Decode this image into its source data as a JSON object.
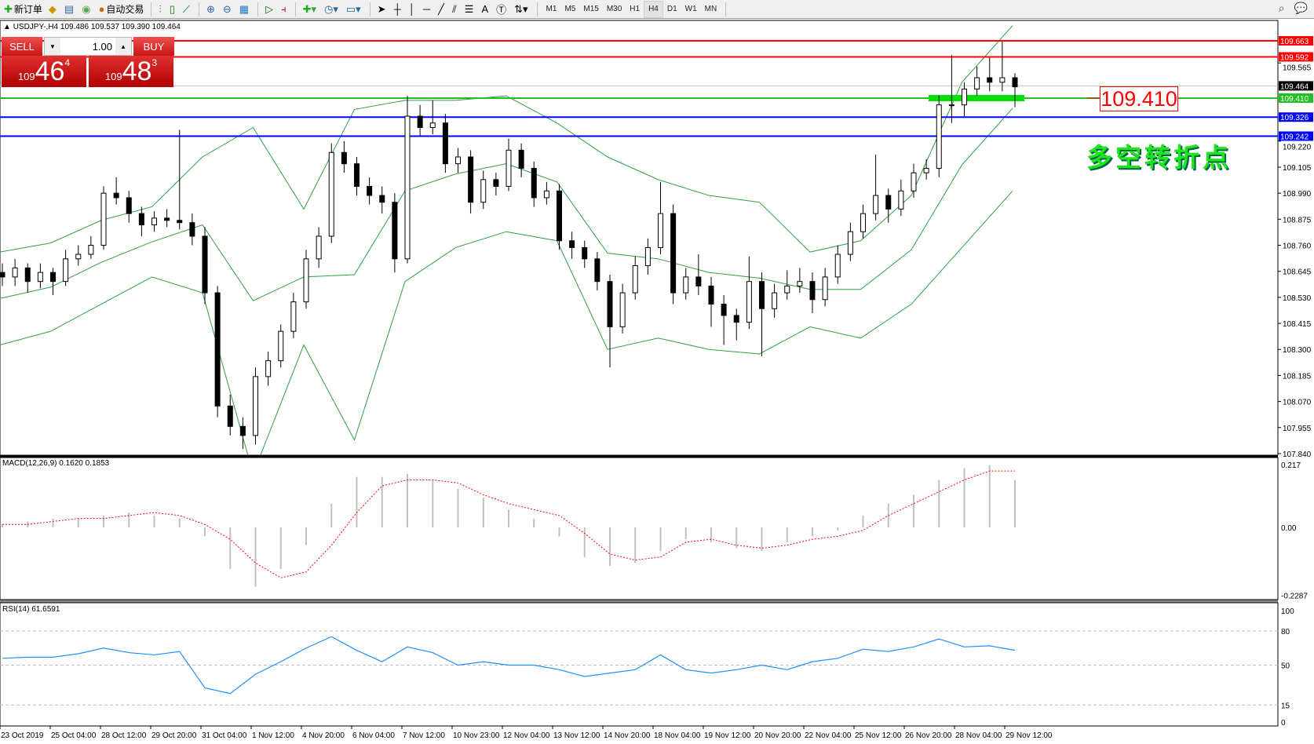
{
  "toolbar": {
    "new_order": "新订单",
    "auto_trading": "自动交易",
    "timeframes": [
      "M1",
      "M5",
      "M15",
      "M30",
      "H1",
      "H4",
      "D1",
      "W1",
      "MN"
    ],
    "active_timeframe": "H4",
    "icons": [
      "new-order-icon",
      "market-watch-icon",
      "navigator-icon",
      "signals-icon",
      "auto-trading-icon",
      "bar-chart-icon",
      "candlestick-icon",
      "line-chart-icon",
      "zoom-in-icon",
      "zoom-out-icon",
      "tile-windows-icon",
      "auto-scroll-icon",
      "chart-shift-icon",
      "indicators-icon",
      "periods-icon",
      "templates-icon",
      "cursor-icon",
      "crosshair-icon",
      "vertical-line-icon",
      "horizontal-line-icon",
      "trendline-icon",
      "equidistant-channel-icon",
      "fibonacci-icon",
      "text-icon",
      "text-label-icon",
      "arrows-icon",
      "search-icon",
      "chat-icon"
    ]
  },
  "symbol": {
    "info": "USDJPY-,H4  109.486 109.537 109.390 109.464"
  },
  "trade": {
    "sell_label": "SELL",
    "buy_label": "BUY",
    "lot": "1.00",
    "sell_small": "109",
    "sell_big": "46",
    "sell_pip": "4",
    "buy_small": "109",
    "buy_big": "48",
    "buy_pip": "3"
  },
  "annotation": {
    "level": "109.410",
    "text": "多空转折点"
  },
  "colors": {
    "up_down_candle": "#000000",
    "bands": "#2ea043",
    "resistance": "#ff0000",
    "support": "#0000ff",
    "pivot": "#00e000",
    "bid": "#c0c0c0",
    "macd_hist": "#c0c0c0",
    "macd_signal": "#ff0000",
    "rsi": "#1e90ff"
  },
  "chart_data": [
    {
      "type": "candlestick",
      "title": "USDJPY-,H4",
      "price_axis": [
        "109.565",
        "109.220",
        "109.105",
        "108.990",
        "108.875",
        "108.760",
        "108.645",
        "108.530",
        "108.415",
        "108.300",
        "108.185",
        "108.070",
        "107.955",
        "107.840"
      ],
      "ylim": [
        107.84,
        109.68
      ],
      "hlines": [
        {
          "value": 109.663,
          "label": "109.663",
          "color": "#ff0000"
        },
        {
          "value": 109.592,
          "label": "109.592",
          "color": "#ff0000"
        },
        {
          "value": 109.464,
          "label": "109.464",
          "color": "#000000",
          "line": "#c0c0c0"
        },
        {
          "value": 109.41,
          "label": "109.410",
          "color": "#22c022"
        },
        {
          "value": 109.326,
          "label": "109.326",
          "color": "#0000ff"
        },
        {
          "value": 109.242,
          "label": "109.242",
          "color": "#0000ff"
        }
      ],
      "time_axis": [
        "23 Oct 2019",
        "25 Oct 04:00",
        "28 Oct 12:00",
        "29 Oct 20:00",
        "31 Oct 04:00",
        "1 Nov 12:00",
        "4 Nov 20:00",
        "6 Nov 04:00",
        "7 Nov 12:00",
        "10 Nov 23:00",
        "12 Nov 04:00",
        "13 Nov 12:00",
        "14 Nov 20:00",
        "18 Nov 04:00",
        "19 Nov 12:00",
        "20 Nov 20:00",
        "22 Nov 04:00",
        "25 Nov 12:00",
        "26 Nov 20:00",
        "28 Nov 04:00",
        "29 Nov 12:00"
      ],
      "candles_ohlc": [
        [
          108.64,
          108.68,
          108.58,
          108.62
        ],
        [
          108.62,
          108.7,
          108.58,
          108.66
        ],
        [
          108.66,
          108.68,
          108.55,
          108.6
        ],
        [
          108.6,
          108.68,
          108.57,
          108.64
        ],
        [
          108.64,
          108.66,
          108.54,
          108.6
        ],
        [
          108.6,
          108.74,
          108.58,
          108.7
        ],
        [
          108.7,
          108.76,
          108.67,
          108.72
        ],
        [
          108.72,
          108.8,
          108.7,
          108.76
        ],
        [
          108.76,
          109.02,
          108.74,
          108.99
        ],
        [
          108.99,
          109.06,
          108.94,
          108.97
        ],
        [
          108.97,
          109.0,
          108.86,
          108.9
        ],
        [
          108.9,
          108.93,
          108.8,
          108.85
        ],
        [
          108.85,
          108.91,
          108.82,
          108.88
        ],
        [
          108.88,
          108.92,
          108.84,
          108.87
        ],
        [
          108.87,
          109.27,
          108.83,
          108.86
        ],
        [
          108.86,
          108.9,
          108.76,
          108.8
        ],
        [
          108.8,
          108.84,
          108.5,
          108.55
        ],
        [
          108.55,
          108.58,
          108.0,
          108.05
        ],
        [
          108.05,
          108.1,
          107.92,
          107.96
        ],
        [
          107.96,
          108.0,
          107.86,
          107.92
        ],
        [
          107.92,
          108.22,
          107.88,
          108.18
        ],
        [
          108.18,
          108.29,
          108.14,
          108.25
        ],
        [
          108.25,
          108.41,
          108.22,
          108.38
        ],
        [
          108.38,
          108.55,
          108.35,
          108.51
        ],
        [
          108.51,
          108.74,
          108.48,
          108.7
        ],
        [
          108.7,
          108.84,
          108.66,
          108.8
        ],
        [
          108.8,
          109.21,
          108.77,
          109.17
        ],
        [
          109.17,
          109.22,
          109.08,
          109.12
        ],
        [
          109.12,
          109.15,
          108.98,
          109.02
        ],
        [
          109.02,
          109.06,
          108.94,
          108.98
        ],
        [
          108.98,
          109.02,
          108.9,
          108.95
        ],
        [
          108.95,
          108.99,
          108.64,
          108.7
        ],
        [
          108.7,
          109.42,
          108.68,
          109.33
        ],
        [
          109.33,
          109.38,
          109.24,
          109.28
        ],
        [
          109.28,
          109.4,
          109.25,
          109.3
        ],
        [
          109.3,
          109.34,
          109.08,
          109.12
        ],
        [
          109.12,
          109.19,
          109.08,
          109.15
        ],
        [
          109.15,
          109.18,
          108.9,
          108.95
        ],
        [
          108.95,
          109.09,
          108.92,
          109.05
        ],
        [
          109.05,
          109.08,
          108.98,
          109.02
        ],
        [
          109.02,
          109.23,
          109.0,
          109.18
        ],
        [
          109.18,
          109.21,
          109.06,
          109.1
        ],
        [
          109.1,
          109.13,
          108.93,
          108.97
        ],
        [
          108.97,
          109.04,
          108.94,
          109.0
        ],
        [
          109.0,
          109.03,
          108.74,
          108.78
        ],
        [
          108.78,
          108.82,
          108.7,
          108.75
        ],
        [
          108.75,
          108.78,
          108.66,
          108.7
        ],
        [
          108.7,
          108.73,
          108.56,
          108.6
        ],
        [
          108.6,
          108.63,
          108.22,
          108.4
        ],
        [
          108.4,
          108.59,
          108.37,
          108.55
        ],
        [
          108.55,
          108.71,
          108.52,
          108.67
        ],
        [
          108.67,
          108.79,
          108.63,
          108.75
        ],
        [
          108.75,
          109.04,
          108.72,
          108.9
        ],
        [
          108.9,
          108.94,
          108.5,
          108.55
        ],
        [
          108.55,
          108.66,
          108.52,
          108.62
        ],
        [
          108.62,
          108.72,
          108.54,
          108.58
        ],
        [
          108.58,
          108.62,
          108.4,
          108.5
        ],
        [
          108.5,
          108.54,
          108.32,
          108.45
        ],
        [
          108.45,
          108.48,
          108.34,
          108.42
        ],
        [
          108.42,
          108.71,
          108.39,
          108.6
        ],
        [
          108.6,
          108.64,
          108.27,
          108.48
        ],
        [
          108.48,
          108.59,
          108.44,
          108.55
        ],
        [
          108.55,
          108.65,
          108.52,
          108.58
        ],
        [
          108.58,
          108.66,
          108.55,
          108.6
        ],
        [
          108.6,
          108.64,
          108.46,
          108.52
        ],
        [
          108.52,
          108.66,
          108.49,
          108.62
        ],
        [
          108.62,
          108.76,
          108.59,
          108.72
        ],
        [
          108.72,
          108.86,
          108.69,
          108.82
        ],
        [
          108.82,
          108.94,
          108.79,
          108.9
        ],
        [
          108.9,
          109.16,
          108.87,
          108.98
        ],
        [
          108.98,
          109.01,
          108.86,
          108.92
        ],
        [
          108.92,
          109.05,
          108.89,
          109.0
        ],
        [
          109.0,
          109.12,
          108.97,
          109.08
        ],
        [
          109.08,
          109.14,
          109.05,
          109.1
        ],
        [
          109.1,
          109.42,
          109.06,
          109.38
        ],
        [
          109.38,
          109.6,
          109.3,
          109.38
        ],
        [
          109.38,
          109.48,
          109.33,
          109.45
        ],
        [
          109.45,
          109.55,
          109.42,
          109.5
        ],
        [
          109.5,
          109.59,
          109.44,
          109.48
        ],
        [
          109.48,
          109.66,
          109.44,
          109.5
        ],
        [
          109.5,
          109.52,
          109.37,
          109.46
        ]
      ],
      "bollinger": {
        "period_points": 21,
        "upper": [
          108.73,
          108.77,
          108.87,
          108.93,
          109.15,
          109.28,
          108.92,
          109.36,
          109.4,
          109.4,
          109.42,
          109.3,
          109.15,
          109.05,
          108.98,
          108.95,
          108.73,
          108.78,
          108.98,
          109.48,
          109.73
        ],
        "lower": [
          108.32,
          108.38,
          108.5,
          108.62,
          108.55,
          107.75,
          108.32,
          107.9,
          108.6,
          108.75,
          108.82,
          108.78,
          108.3,
          108.35,
          108.3,
          108.28,
          108.4,
          108.35,
          108.5,
          108.75,
          109.0
        ]
      }
    },
    {
      "type": "bar+line",
      "title": "MACD(12,26,9) 0.1620 0.1853",
      "axis": [
        "0.217",
        "0.00",
        "-0.2287"
      ],
      "ylim": [
        -0.2287,
        0.217
      ],
      "macd": [
        0.01,
        0.02,
        0.03,
        0.03,
        0.04,
        0.05,
        0.04,
        0.03,
        -0.03,
        -0.14,
        -0.2,
        -0.14,
        -0.06,
        0.08,
        0.17,
        0.17,
        0.18,
        0.16,
        0.13,
        0.1,
        0.06,
        0.03,
        -0.03,
        -0.1,
        -0.13,
        -0.12,
        -0.08,
        -0.04,
        -0.05,
        -0.07,
        -0.08,
        -0.05,
        -0.03,
        -0.01,
        0.04,
        0.08,
        0.11,
        0.16,
        0.2,
        0.21,
        0.16
      ],
      "signal": [
        0.01,
        0.01,
        0.02,
        0.03,
        0.03,
        0.04,
        0.05,
        0.04,
        0.01,
        -0.04,
        -0.12,
        -0.17,
        -0.15,
        -0.06,
        0.05,
        0.14,
        0.16,
        0.16,
        0.15,
        0.11,
        0.08,
        0.06,
        0.04,
        -0.02,
        -0.09,
        -0.11,
        -0.1,
        -0.05,
        -0.04,
        -0.06,
        -0.07,
        -0.06,
        -0.04,
        -0.03,
        -0.01,
        0.04,
        0.08,
        0.12,
        0.16,
        0.19,
        0.19
      ]
    },
    {
      "type": "line",
      "title": "RSI(14) 61.6591",
      "axis": [
        "100",
        "80",
        "50",
        "15",
        "0"
      ],
      "ylim": [
        0,
        100
      ],
      "levels": [
        80,
        50,
        15
      ],
      "values": [
        56,
        57,
        57,
        60,
        65,
        61,
        59,
        62,
        30,
        25,
        42,
        53,
        65,
        75,
        63,
        53,
        66,
        61,
        50,
        53,
        50,
        50,
        46,
        40,
        43,
        46,
        59,
        46,
        43,
        46,
        50,
        46,
        53,
        56,
        64,
        62,
        66,
        73,
        66,
        67,
        63
      ]
    }
  ]
}
